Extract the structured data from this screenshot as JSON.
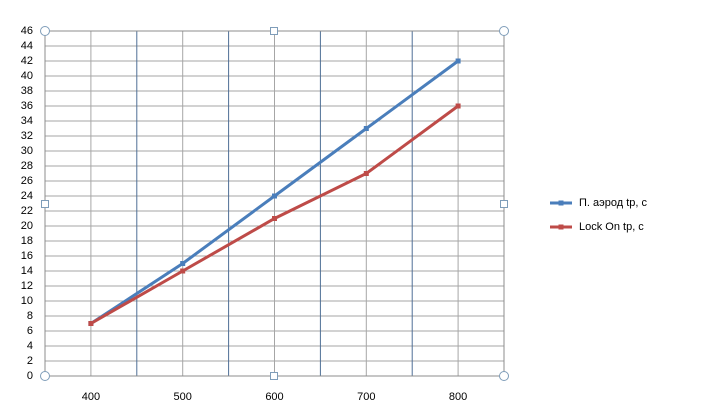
{
  "chart_data": {
    "type": "line",
    "x": [
      400,
      500,
      600,
      700,
      800
    ],
    "xlim": [
      350,
      850
    ],
    "xticks": [
      400,
      500,
      600,
      700,
      800
    ],
    "x_minor_grid": [
      450,
      550,
      650,
      750
    ],
    "ylim": [
      0,
      46
    ],
    "yticks": [
      0,
      2,
      4,
      6,
      8,
      10,
      12,
      14,
      16,
      18,
      20,
      22,
      24,
      26,
      28,
      30,
      32,
      34,
      36,
      38,
      40,
      42,
      44,
      46
    ],
    "grid": true,
    "legend": "right",
    "series": [
      {
        "name": "П. аэрод tр, с",
        "color": "#4a7ebb",
        "values": [
          7,
          15,
          24,
          33,
          42
        ]
      },
      {
        "name": "Lock On tр, с",
        "color": "#be4b48",
        "values": [
          7,
          14,
          21,
          27,
          36
        ]
      }
    ]
  }
}
